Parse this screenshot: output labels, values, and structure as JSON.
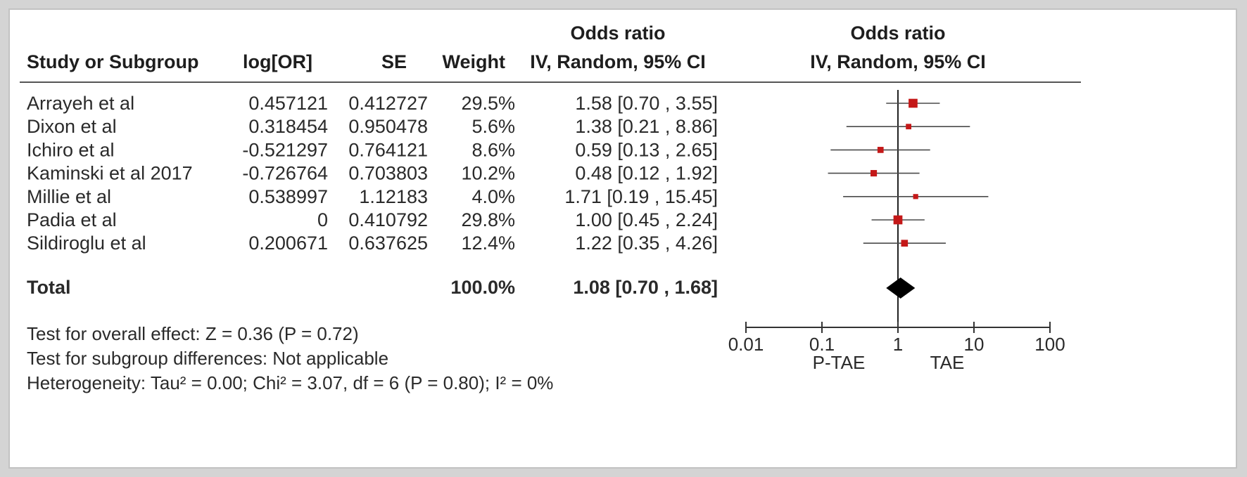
{
  "table": {
    "columns": {
      "study": "Study or Subgroup",
      "log_or": "log[OR]",
      "se": "SE",
      "weight": "Weight",
      "or_title": "Odds ratio",
      "or_method": "IV, Random, 95% CI"
    },
    "plot_header": {
      "title": "Odds ratio",
      "method": "IV, Random, 95% CI"
    },
    "total": {
      "label": "Total",
      "weight": "100.0%",
      "or_text": "1.08 [0.70 , 1.68]"
    },
    "footer": [
      "Test for overall effect: Z = 0.36 (P = 0.72)",
      "Test for subgroup differences: Not applicable",
      "Heterogeneity: Tau² = 0.00; Chi² = 3.07, df = 6 (P = 0.80); I² = 0%"
    ]
  },
  "chart_data": {
    "type": "forest",
    "scale": "log",
    "xlim": [
      0.01,
      100
    ],
    "x_ticks": [
      "0.01",
      "0.1",
      "1",
      "10",
      "100"
    ],
    "x_tick_values": [
      0.01,
      0.1,
      1,
      10,
      100
    ],
    "null_line": 1,
    "favours_left": "P-TAE",
    "favours_right": "TAE",
    "marker_color": "#c41818",
    "studies": [
      {
        "name": "Arrayeh et al",
        "log_or": "0.457121",
        "se": "0.412727",
        "weight_label": "29.5%",
        "or_text": "1.58 [0.70 , 3.55]",
        "weight": 29.5,
        "or": 1.58,
        "lo": 0.7,
        "hi": 3.55
      },
      {
        "name": "Dixon et al",
        "log_or": "0.318454",
        "se": "0.950478",
        "weight_label": "5.6%",
        "or_text": "1.38 [0.21 , 8.86]",
        "weight": 5.6,
        "or": 1.38,
        "lo": 0.21,
        "hi": 8.86
      },
      {
        "name": "Ichiro et al",
        "log_or": "-0.521297",
        "se": "0.764121",
        "weight_label": "8.6%",
        "or_text": "0.59 [0.13 , 2.65]",
        "weight": 8.6,
        "or": 0.59,
        "lo": 0.13,
        "hi": 2.65
      },
      {
        "name": "Kaminski et al 2017",
        "log_or": "-0.726764",
        "se": "0.703803",
        "weight_label": "10.2%",
        "or_text": "0.48 [0.12 , 1.92]",
        "weight": 10.2,
        "or": 0.48,
        "lo": 0.12,
        "hi": 1.92
      },
      {
        "name": "Millie et al",
        "log_or": "0.538997",
        "se": "1.12183",
        "weight_label": "4.0%",
        "or_text": "1.71 [0.19 , 15.45]",
        "weight": 4.0,
        "or": 1.71,
        "lo": 0.19,
        "hi": 15.45
      },
      {
        "name": "Padia et al",
        "log_or": "0",
        "se": "0.410792",
        "weight_label": "29.8%",
        "or_text": "1.00 [0.45 , 2.24]",
        "weight": 29.8,
        "or": 1.0,
        "lo": 0.45,
        "hi": 2.24
      },
      {
        "name": "Sildiroglu et al",
        "log_or": "0.200671",
        "se": "0.637625",
        "weight_label": "12.4%",
        "or_text": "1.22 [0.35 , 4.26]",
        "weight": 12.4,
        "or": 1.22,
        "lo": 0.35,
        "hi": 4.26
      }
    ],
    "pooled": {
      "or": 1.08,
      "lo": 0.7,
      "hi": 1.68
    }
  }
}
